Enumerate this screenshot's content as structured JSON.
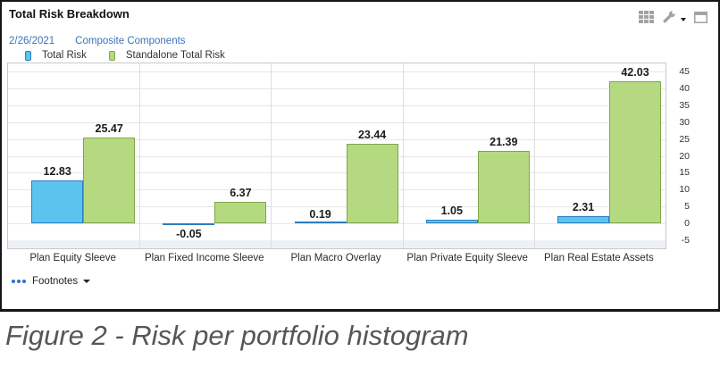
{
  "panel": {
    "title": "Total Risk Breakdown",
    "date": "2/26/2021",
    "components_link": "Composite Components",
    "footnotes_label": "Footnotes",
    "toolbar_icons": [
      "table-grid-icon",
      "wrench-icon",
      "window-icon"
    ]
  },
  "colors": {
    "total_risk_fill": "#5bc4ee",
    "total_risk_border": "#2f7cbe",
    "standalone_fill": "#b5d981",
    "standalone_border": "#7ea64b",
    "link_blue": "#3a72b8",
    "icon_gray": "#a3a3a3",
    "caption_gray": "#54565a"
  },
  "chart_data": {
    "type": "bar",
    "title": "Total Risk Breakdown",
    "categories": [
      "Plan Equity Sleeve",
      "Plan Fixed Income Sleeve",
      "Plan Macro Overlay",
      "Plan Private Equity Sleeve",
      "Plan Real Estate Assets"
    ],
    "series": [
      {
        "name": "Total Risk",
        "values": [
          12.83,
          -0.05,
          0.19,
          1.05,
          2.31
        ],
        "fill": "#5bc4ee",
        "stroke": "#2f7cbe"
      },
      {
        "name": "Standalone Total Risk",
        "values": [
          25.47,
          6.37,
          23.44,
          21.39,
          42.03
        ],
        "fill": "#b5d981",
        "stroke": "#7ea64b"
      }
    ],
    "ylim": [
      -5,
      45
    ],
    "ytick_step": 5,
    "yticks": [
      45,
      40,
      35,
      30,
      25,
      20,
      15,
      10,
      5,
      0,
      -5
    ],
    "grid": true,
    "yaxis_side": "right",
    "legend_position": "top-left",
    "value_labels": true
  },
  "caption": "Figure 2 - Risk per portfolio histogram"
}
